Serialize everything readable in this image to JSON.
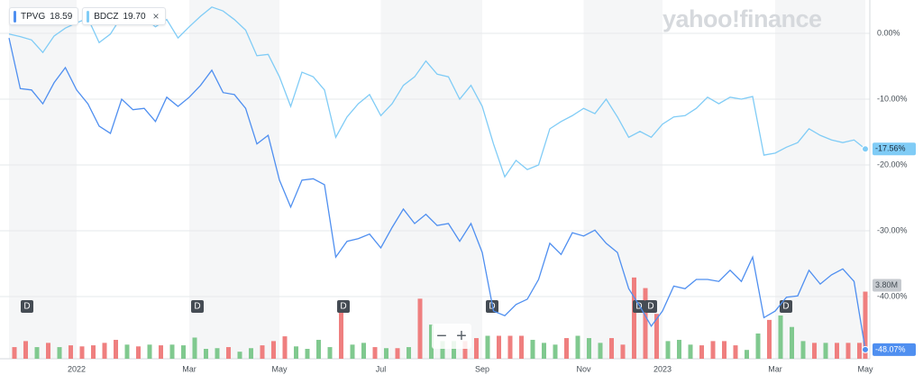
{
  "brand": "yahoo!finance",
  "chart_data": {
    "type": "line",
    "legend_close": "×",
    "zoom_out": "−",
    "zoom_in": "+",
    "dividend_label": "D",
    "categories": [
      null,
      null,
      null,
      null,
      null,
      null,
      "2022",
      null,
      null,
      null,
      null,
      null,
      null,
      null,
      null,
      null,
      "Mar",
      null,
      null,
      null,
      null,
      null,
      null,
      null,
      "May",
      null,
      null,
      null,
      null,
      null,
      null,
      null,
      null,
      "Jul",
      null,
      null,
      null,
      null,
      null,
      null,
      null,
      null,
      "Sep",
      null,
      null,
      null,
      null,
      null,
      null,
      null,
      null,
      "Nov",
      null,
      null,
      null,
      null,
      null,
      null,
      "2023",
      null,
      null,
      null,
      null,
      null,
      null,
      null,
      null,
      null,
      "Mar",
      null,
      null,
      null,
      null,
      null,
      null,
      null,
      "May"
    ],
    "ylim": [
      -49.45,
      5.07
    ],
    "yticks": [
      {
        "value": 0,
        "label": "0.00%"
      },
      {
        "value": -10,
        "label": "-10.00%"
      },
      {
        "value": -20,
        "label": "-20.00%"
      },
      {
        "value": -30,
        "label": "-30.00%"
      },
      {
        "value": -40,
        "label": "-40.00%"
      }
    ],
    "grid": true,
    "series": [
      {
        "name": "TPVG",
        "price": "18.59",
        "color": "#4f8ff0",
        "values": [
          -0.7,
          -8.4,
          -8.6,
          -10.7,
          -7.5,
          -5.2,
          -8.6,
          -10.7,
          -14.1,
          -15.2,
          -10.0,
          -11.6,
          -11.4,
          -13.4,
          -9.7,
          -11.1,
          -9.7,
          -7.9,
          -5.6,
          -9.0,
          -9.3,
          -11.4,
          -16.8,
          -15.5,
          -22.3,
          -26.4,
          -22.3,
          -22.1,
          -23.0,
          -34.0,
          -31.6,
          -31.2,
          -30.5,
          -32.6,
          -29.5,
          -26.7,
          -28.9,
          -27.5,
          -29.2,
          -28.9,
          -31.6,
          -28.9,
          -33.3,
          -42.2,
          -42.9,
          -41.2,
          -40.4,
          -37.4,
          -31.9,
          -33.6,
          -30.3,
          -30.8,
          -29.9,
          -31.9,
          -33.3,
          -38.8,
          -41.5,
          -44.5,
          -42.2,
          -38.4,
          -38.8,
          -37.4,
          -37.4,
          -37.7,
          -36.0,
          -37.7,
          -34.0,
          -43.2,
          -42.2,
          -40.1,
          -39.9,
          -36.0,
          -38.1,
          -36.7,
          -35.8,
          -37.7,
          -48.07
        ],
        "value_labels": [
          null,
          null,
          null,
          null,
          null,
          null,
          null,
          null,
          null,
          null,
          null,
          null,
          null,
          null,
          null,
          null,
          null,
          null,
          null,
          null,
          null,
          null,
          null,
          null,
          null,
          null,
          null,
          null,
          null,
          null,
          null,
          null,
          null,
          null,
          null,
          null,
          null,
          null,
          null,
          null,
          null,
          null,
          null,
          null,
          null,
          null,
          null,
          null,
          null,
          null,
          null,
          null,
          null,
          null,
          null,
          null,
          null,
          null,
          null,
          null,
          null,
          null,
          null,
          null,
          null,
          null,
          null,
          null,
          null,
          null,
          null,
          null,
          null,
          null,
          null,
          null,
          "-48.07%"
        ]
      },
      {
        "name": "BDCZ",
        "price": "19.70",
        "color": "#80ccf6",
        "values": [
          -0.1,
          -0.5,
          -1.0,
          -2.9,
          -0.4,
          0.8,
          1.6,
          2.3,
          -1.4,
          -0.1,
          2.6,
          3.2,
          2.3,
          1.0,
          2.1,
          -0.7,
          1.0,
          2.6,
          4.0,
          3.4,
          2.1,
          0.5,
          -3.4,
          -3.2,
          -6.6,
          -11.1,
          -5.9,
          -6.6,
          -8.6,
          -15.8,
          -12.7,
          -10.7,
          -9.3,
          -12.5,
          -10.7,
          -7.9,
          -6.6,
          -4.2,
          -6.2,
          -6.6,
          -10.0,
          -7.9,
          -11.1,
          -16.8,
          -21.8,
          -19.3,
          -20.7,
          -20.0,
          -14.5,
          -13.4,
          -12.5,
          -11.4,
          -12.2,
          -10.0,
          -12.7,
          -15.8,
          -14.9,
          -15.8,
          -13.8,
          -12.7,
          -12.5,
          -11.4,
          -9.7,
          -10.7,
          -9.7,
          -10.0,
          -9.6,
          -18.5,
          -18.2,
          -17.3,
          -16.6,
          -14.5,
          -15.5,
          -16.2,
          -16.6,
          -16.2,
          -17.56
        ],
        "value_labels": [
          null,
          null,
          null,
          null,
          null,
          null,
          null,
          null,
          null,
          null,
          null,
          null,
          null,
          null,
          null,
          null,
          null,
          null,
          null,
          null,
          null,
          null,
          null,
          null,
          null,
          null,
          null,
          null,
          null,
          null,
          null,
          null,
          null,
          null,
          null,
          null,
          null,
          null,
          null,
          null,
          null,
          null,
          null,
          null,
          null,
          null,
          null,
          null,
          null,
          null,
          null,
          null,
          null,
          null,
          null,
          null,
          null,
          null,
          null,
          null,
          null,
          null,
          null,
          null,
          null,
          null,
          null,
          null,
          null,
          null,
          null,
          null,
          null,
          null,
          null,
          null,
          "-17.56%"
        ]
      }
    ],
    "volume": {
      "type": "bar",
      "ylim": [
        0,
        5
      ],
      "values": [
        0.66,
        1.0,
        0.66,
        0.9,
        0.66,
        0.76,
        0.7,
        0.76,
        0.9,
        1.07,
        0.8,
        0.7,
        0.8,
        0.76,
        0.8,
        0.76,
        1.2,
        0.56,
        0.6,
        0.66,
        0.4,
        0.6,
        0.76,
        1.0,
        1.27,
        0.7,
        0.56,
        1.07,
        0.66,
        3.2,
        0.8,
        0.9,
        0.66,
        0.6,
        0.6,
        0.66,
        3.4,
        1.93,
        1.0,
        1.0,
        1.0,
        1.17,
        1.3,
        1.3,
        1.3,
        1.3,
        1.07,
        0.9,
        0.8,
        1.17,
        1.3,
        1.17,
        0.9,
        1.17,
        0.8,
        4.6,
        4.0,
        2.54,
        1.0,
        1.07,
        0.8,
        0.76,
        1.0,
        1.0,
        0.76,
        0.5,
        1.43,
        2.2,
        2.45,
        1.8,
        1.0,
        0.9,
        0.9,
        0.9,
        0.9,
        0.9,
        3.8
      ],
      "value_labels": [
        null,
        null,
        null,
        null,
        null,
        null,
        null,
        null,
        null,
        null,
        null,
        null,
        null,
        null,
        null,
        null,
        null,
        null,
        null,
        null,
        null,
        null,
        null,
        null,
        null,
        null,
        null,
        null,
        null,
        null,
        null,
        null,
        null,
        null,
        null,
        null,
        null,
        null,
        null,
        null,
        null,
        null,
        null,
        null,
        null,
        null,
        null,
        null,
        null,
        null,
        null,
        null,
        null,
        null,
        null,
        null,
        null,
        null,
        null,
        null,
        null,
        null,
        null,
        null,
        null,
        null,
        null,
        null,
        null,
        null,
        null,
        null,
        null,
        null,
        null,
        null,
        "3.80M"
      ],
      "colors": [
        "#ef7f7f",
        "#ef7f7f",
        "#80c98f",
        "#ef7f7f",
        "#80c98f",
        "#ef7f7f",
        "#ef7f7f",
        "#ef7f7f",
        "#ef7f7f",
        "#ef7f7f",
        "#80c98f",
        "#ef7f7f",
        "#80c98f",
        "#ef7f7f",
        "#80c98f",
        "#80c98f",
        "#80c98f",
        "#80c98f",
        "#80c98f",
        "#ef7f7f",
        "#80c98f",
        "#80c98f",
        "#ef7f7f",
        "#ef7f7f",
        "#ef7f7f",
        "#80c98f",
        "#80c98f",
        "#80c98f",
        "#80c98f",
        "#ef7f7f",
        "#80c98f",
        "#80c98f",
        "#ef7f7f",
        "#80c98f",
        "#ef7f7f",
        "#80c98f",
        "#ef7f7f",
        "#80c98f",
        "#80c98f",
        "#80c98f",
        "#ef7f7f",
        "#ef7f7f",
        "#80c98f",
        "#ef7f7f",
        "#ef7f7f",
        "#ef7f7f",
        "#80c98f",
        "#80c98f",
        "#80c98f",
        "#ef7f7f",
        "#80c98f",
        "#80c98f",
        "#80c98f",
        "#ef7f7f",
        "#ef7f7f",
        "#ef7f7f",
        "#ef7f7f",
        "#ef7f7f",
        "#80c98f",
        "#80c98f",
        "#80c98f",
        "#ef7f7f",
        "#ef7f7f",
        "#ef7f7f",
        "#ef7f7f",
        "#80c98f",
        "#80c98f",
        "#ef7f7f",
        "#80c98f",
        "#80c98f",
        "#80c98f",
        "#ef7f7f",
        "#80c98f",
        "#ef7f7f",
        "#ef7f7f",
        "#ef7f7f",
        "#ef7f7f"
      ]
    }
  }
}
